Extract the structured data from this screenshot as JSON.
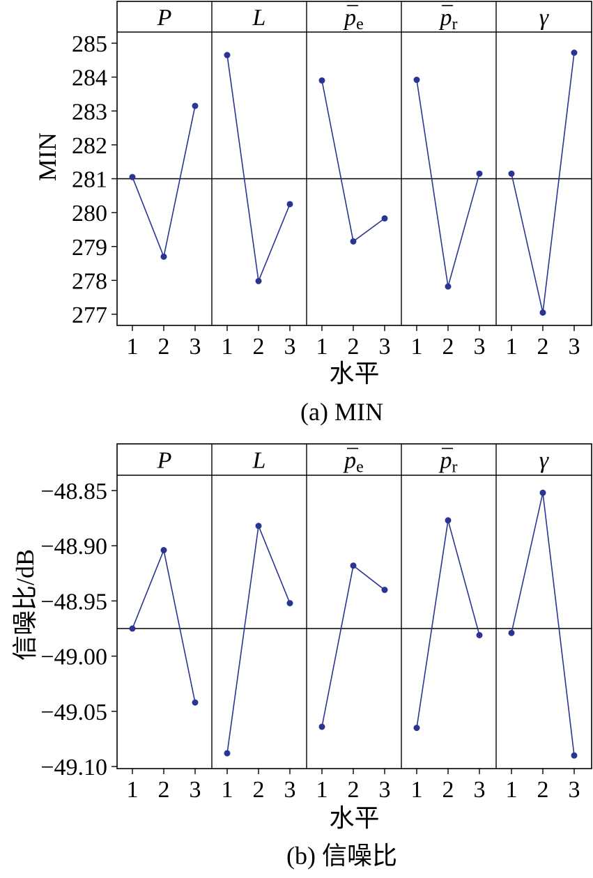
{
  "chart_data": [
    {
      "type": "line",
      "caption": "(a) MIN",
      "ylabel": "MIN",
      "xlabel": "水平",
      "ylim": [
        276.6,
        285.35
      ],
      "yticks": [
        "277",
        "278",
        "279",
        "280",
        "281",
        "282",
        "283",
        "284",
        "285"
      ],
      "reference_line": 281.0,
      "panels": [
        {
          "label": "P",
          "base": "P",
          "sub": "",
          "bar": false,
          "x": [
            "1",
            "2",
            "3"
          ],
          "values": [
            281.05,
            278.7,
            283.15
          ]
        },
        {
          "label": "L",
          "base": "L",
          "sub": "",
          "bar": false,
          "x": [
            "1",
            "2",
            "3"
          ],
          "values": [
            284.65,
            277.98,
            280.25
          ]
        },
        {
          "label": "p̄e",
          "base": "p",
          "sub": "e",
          "bar": true,
          "x": [
            "1",
            "2",
            "3"
          ],
          "values": [
            283.9,
            279.15,
            279.83
          ]
        },
        {
          "label": "p̄r",
          "base": "p",
          "sub": "r",
          "bar": true,
          "x": [
            "1",
            "2",
            "3"
          ],
          "values": [
            283.92,
            277.82,
            281.15
          ]
        },
        {
          "label": "γ",
          "base": "γ",
          "sub": "",
          "bar": false,
          "x": [
            "1",
            "2",
            "3"
          ],
          "values": [
            281.15,
            277.05,
            284.72
          ]
        }
      ]
    },
    {
      "type": "line",
      "caption": "(b) 信噪比",
      "ylabel": "信噪比/dB",
      "xlabel": "水平",
      "ylim": [
        -49.103,
        -48.833
      ],
      "yticks": [
        "−48.85",
        "−48.90",
        "−48.95",
        "−49.00",
        "−49.05",
        "−49.10"
      ],
      "reference_line": -48.975,
      "panels": [
        {
          "label": "P",
          "base": "P",
          "sub": "",
          "bar": false,
          "x": [
            "1",
            "2",
            "3"
          ],
          "values": [
            -48.975,
            -48.904,
            -49.042
          ]
        },
        {
          "label": "L",
          "base": "L",
          "sub": "",
          "bar": false,
          "x": [
            "1",
            "2",
            "3"
          ],
          "values": [
            -49.088,
            -48.882,
            -48.952
          ]
        },
        {
          "label": "p̄e",
          "base": "p",
          "sub": "e",
          "bar": true,
          "x": [
            "1",
            "2",
            "3"
          ],
          "values": [
            -49.064,
            -48.918,
            -48.94
          ]
        },
        {
          "label": "p̄r",
          "base": "p",
          "sub": "r",
          "bar": true,
          "x": [
            "1",
            "2",
            "3"
          ],
          "values": [
            -49.065,
            -48.877,
            -48.981
          ]
        },
        {
          "label": "γ",
          "base": "γ",
          "sub": "",
          "bar": false,
          "x": [
            "1",
            "2",
            "3"
          ],
          "values": [
            -48.979,
            -48.852,
            -49.09
          ]
        }
      ]
    }
  ],
  "colors": {
    "series": "#2a3592",
    "frame": "#000000"
  }
}
